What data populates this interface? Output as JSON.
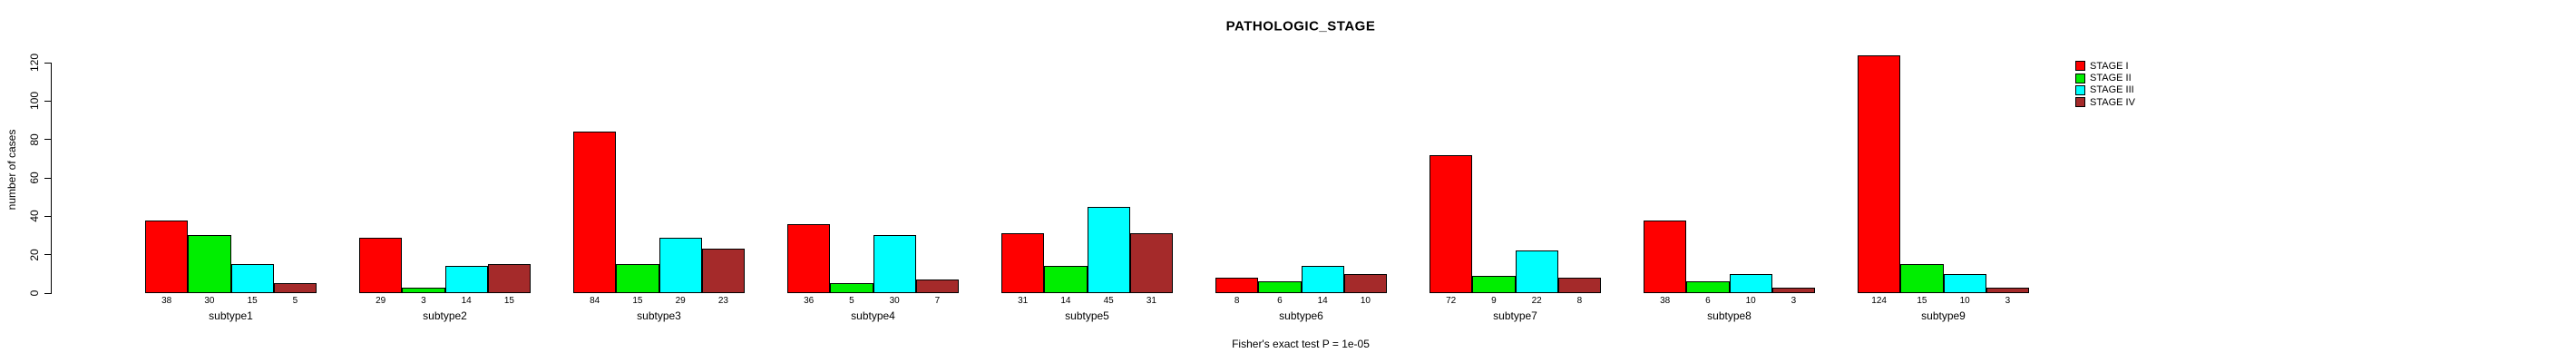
{
  "chart_data": {
    "type": "bar",
    "title": "PATHOLOGIC_STAGE",
    "ylabel": "number of cases",
    "xlabel": "",
    "footer": "Fisher's exact test P = 1e-05",
    "categories": [
      "subtype1",
      "subtype2",
      "subtype3",
      "subtype4",
      "subtype5",
      "subtype6",
      "subtype7",
      "subtype8",
      "subtype9"
    ],
    "series": [
      {
        "name": "STAGE I",
        "color": "#ff0000",
        "values": [
          38,
          29,
          84,
          36,
          31,
          8,
          72,
          38,
          124
        ]
      },
      {
        "name": "STAGE II",
        "color": "#00ee00",
        "values": [
          30,
          3,
          15,
          5,
          14,
          6,
          9,
          6,
          15
        ]
      },
      {
        "name": "STAGE III",
        "color": "#00ffff",
        "values": [
          15,
          14,
          29,
          30,
          45,
          14,
          22,
          10,
          10
        ]
      },
      {
        "name": "STAGE IV",
        "color": "#a52a2a",
        "values": [
          5,
          15,
          23,
          7,
          31,
          10,
          8,
          3,
          3
        ]
      }
    ],
    "bar_value_labels": true,
    "yticks": [
      0,
      20,
      40,
      60,
      80,
      100,
      120
    ],
    "ylim": [
      0,
      130
    ],
    "grid": false,
    "legend_position": "right",
    "background": "#ffffff",
    "bar_border_color": "#000000"
  }
}
